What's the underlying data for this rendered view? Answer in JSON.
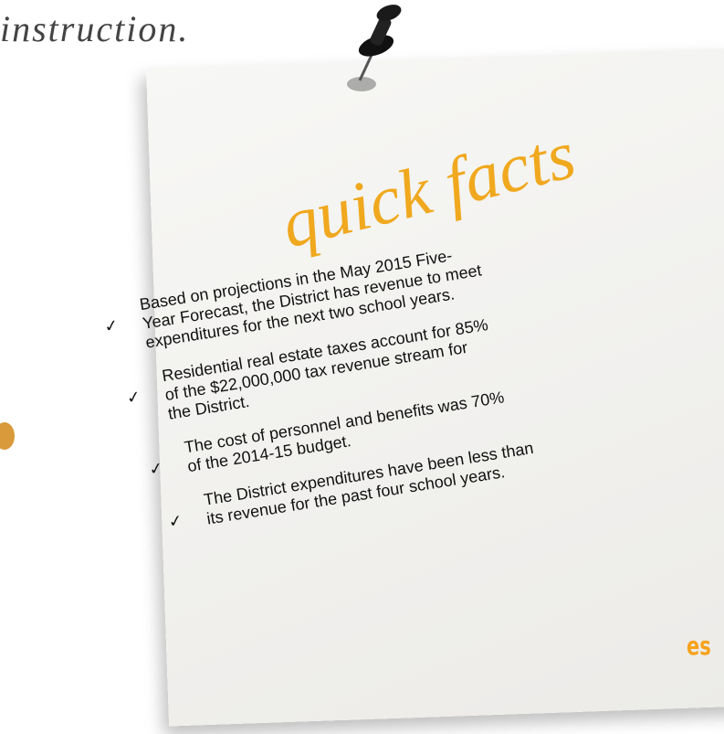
{
  "header": {
    "text": "instruction."
  },
  "side_fragment": {
    "text": "es"
  },
  "note": {
    "title": "quick facts",
    "facts": [
      [
        "Based on projections in the May 2015 Five-",
        "Year Forecast, the District has revenue to meet",
        "expenditures for the next two school years."
      ],
      [
        "Residential real estate taxes account for 85%",
        "of the $22,000,000 tax revenue stream for",
        "the District."
      ],
      [
        "The cost of personnel and benefits was 70%",
        "of the 2014-15 budget."
      ],
      [
        "The District expenditures have been less than",
        "its revenue for the past four school years."
      ]
    ]
  }
}
